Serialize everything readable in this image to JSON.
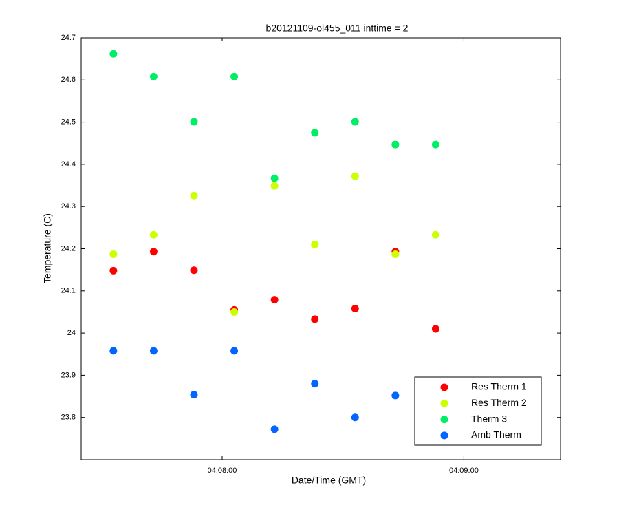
{
  "chart_data": {
    "type": "scatter",
    "title": "b20121109-ol455_011 inttime = 2",
    "xlabel": "Date/Time (GMT)",
    "ylabel": "Temperature (C)",
    "x": [
      "04:07:33",
      "04:07:43",
      "04:07:53",
      "04:08:03",
      "04:08:13",
      "04:08:23",
      "04:08:33",
      "04:08:43",
      "04:08:53"
    ],
    "xlim": [
      "04:07:25",
      "04:09:24"
    ],
    "xticks": [
      "04:08:00",
      "04:09:00"
    ],
    "ylim": [
      23.7,
      24.7
    ],
    "yticks": [
      23.8,
      23.9,
      24,
      24.1,
      24.2,
      24.3,
      24.4,
      24.5,
      24.6,
      24.7
    ],
    "legend": "lower right",
    "series": [
      {
        "name": "Res Therm 1",
        "color": "#ff0000",
        "values": [
          24.148,
          24.193,
          24.149,
          24.055,
          24.079,
          24.033,
          24.058,
          24.193,
          24.01
        ]
      },
      {
        "name": "Res Therm 2",
        "color": "#ccff00",
        "values": [
          24.187,
          24.233,
          24.326,
          24.05,
          24.349,
          24.21,
          24.372,
          24.187,
          24.233
        ]
      },
      {
        "name": "Therm 3",
        "color": "#00ee66",
        "values": [
          24.662,
          24.608,
          24.501,
          24.608,
          24.367,
          24.475,
          24.501,
          24.447,
          24.447
        ]
      },
      {
        "name": "Amb Therm",
        "color": "#0066ff",
        "values": [
          23.958,
          23.958,
          23.854,
          23.958,
          23.772,
          23.88,
          23.8,
          23.852,
          null
        ]
      }
    ]
  }
}
